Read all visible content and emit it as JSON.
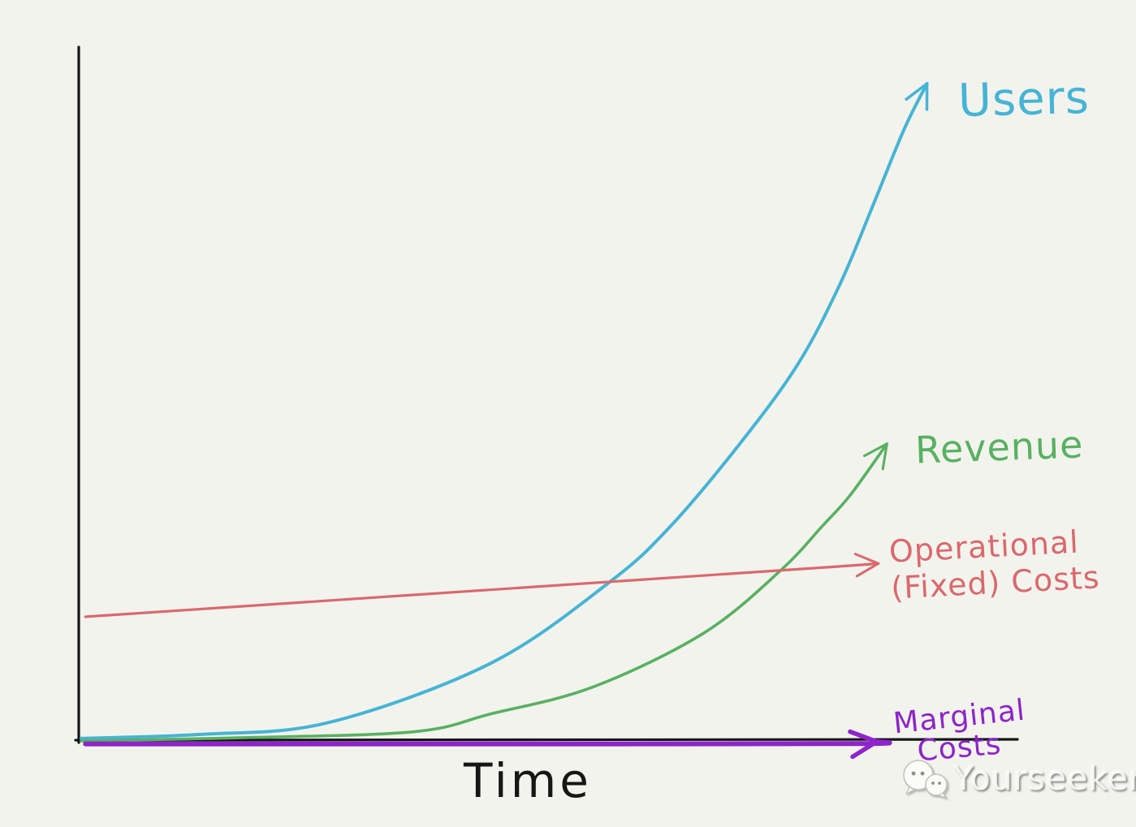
{
  "background_color": "#f3f3ee",
  "axes": {
    "color": "#161616",
    "xlabel_color": "#161616"
  },
  "chart_data": {
    "type": "line",
    "title": "",
    "xlabel": "Time",
    "ylabel": "",
    "xlim": [
      0,
      10
    ],
    "ylim": [
      0,
      1
    ],
    "grid": false,
    "legend_position": "inline-right-handwritten",
    "style": "hand-drawn sketch, arrows at end of each series",
    "series": [
      {
        "name": "Users",
        "color": "#46b4d4",
        "stroke_width": 4,
        "shape": "exponential",
        "points": [
          [
            0,
            0.004
          ],
          [
            1.4,
            0.01
          ],
          [
            2.9,
            0.028
          ],
          [
            4.8,
            0.118
          ],
          [
            6.2,
            0.242
          ],
          [
            6.9,
            0.325
          ],
          [
            7.7,
            0.448
          ],
          [
            8.4,
            0.572
          ],
          [
            8.9,
            0.695
          ],
          [
            9.3,
            0.819
          ],
          [
            9.65,
            0.93
          ],
          [
            9.92,
            1.0
          ]
        ]
      },
      {
        "name": "Revenue",
        "color": "#58b161",
        "stroke_width": 3.6,
        "shape": "exponential",
        "points": [
          [
            0,
            0.0
          ],
          [
            1.9,
            0.005
          ],
          [
            3.9,
            0.014
          ],
          [
            4.8,
            0.041
          ],
          [
            6.0,
            0.082
          ],
          [
            7.3,
            0.164
          ],
          [
            8.2,
            0.259
          ],
          [
            8.7,
            0.328
          ],
          [
            9.02,
            0.374
          ],
          [
            9.45,
            0.452
          ]
        ]
      },
      {
        "name": "Operational (Fixed) Costs",
        "color": "#db686c",
        "stroke_width": 3.2,
        "shape": "linear-flat",
        "points": [
          [
            0.05,
            0.189
          ],
          [
            4.8,
            0.23
          ],
          [
            8.6,
            0.263
          ],
          [
            9.35,
            0.27
          ]
        ]
      },
      {
        "name": "Marginal Costs",
        "color": "#8e24c9",
        "stroke_width": 6,
        "shape": "flat-on-axis",
        "points": [
          [
            0.05,
            -0.0045
          ],
          [
            5.0,
            -0.0045
          ],
          [
            9.1,
            -0.004
          ],
          [
            9.33,
            -0.001
          ]
        ]
      }
    ]
  },
  "labels": {
    "operational_line1": "Operational",
    "operational_line2": "(Fixed) Costs",
    "marginal_line1": "Marginal",
    "marginal_line2": "Costs"
  },
  "watermark": {
    "text": "Yourseeker",
    "icon": "wechat-chat-bubbles"
  }
}
